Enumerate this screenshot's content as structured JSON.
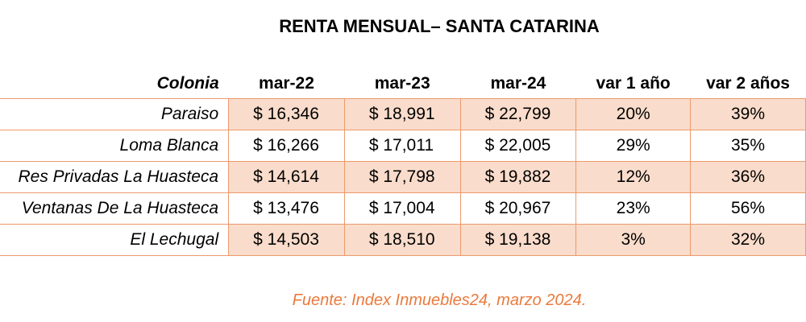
{
  "chart_data": {
    "type": "table",
    "title": "RENTA MENSUAL– SANTA CATARINA",
    "columns": [
      "Colonia",
      "mar-22",
      "mar-23",
      "mar-24",
      "var 1 año",
      "var 2 años"
    ],
    "rows": [
      [
        "Paraiso",
        "$ 16,346",
        "$ 18,991",
        "$ 22,799",
        "20%",
        "39%"
      ],
      [
        "Loma Blanca",
        "$ 16,266",
        "$ 17,011",
        "$ 22,005",
        "29%",
        "35%"
      ],
      [
        "Res Privadas La Huasteca",
        "$ 14,614",
        "$ 17,798",
        "$ 19,882",
        "12%",
        "36%"
      ],
      [
        "Ventanas De La Huasteca",
        "$ 13,476",
        "$ 17,004",
        "$ 20,967",
        "23%",
        "56%"
      ],
      [
        "El Lechugal",
        "$ 14,503",
        "$ 18,510",
        "$ 19,138",
        "3%",
        "32%"
      ]
    ],
    "values": {
      "mar-22": [
        16346,
        16266,
        14614,
        13476,
        14503
      ],
      "mar-23": [
        18991,
        17011,
        17798,
        17004,
        18510
      ],
      "mar-24": [
        22799,
        22005,
        19882,
        20967,
        19138
      ],
      "var 1 año": [
        20,
        29,
        12,
        23,
        3
      ],
      "var 2 años": [
        39,
        35,
        36,
        56,
        32
      ]
    },
    "source": "Fuente: Index Inmuebles24, marzo 2024."
  },
  "colors": {
    "border": "#ec9a6c",
    "row_fill": "#f9dccb",
    "source_text": "#ea7a3c"
  }
}
